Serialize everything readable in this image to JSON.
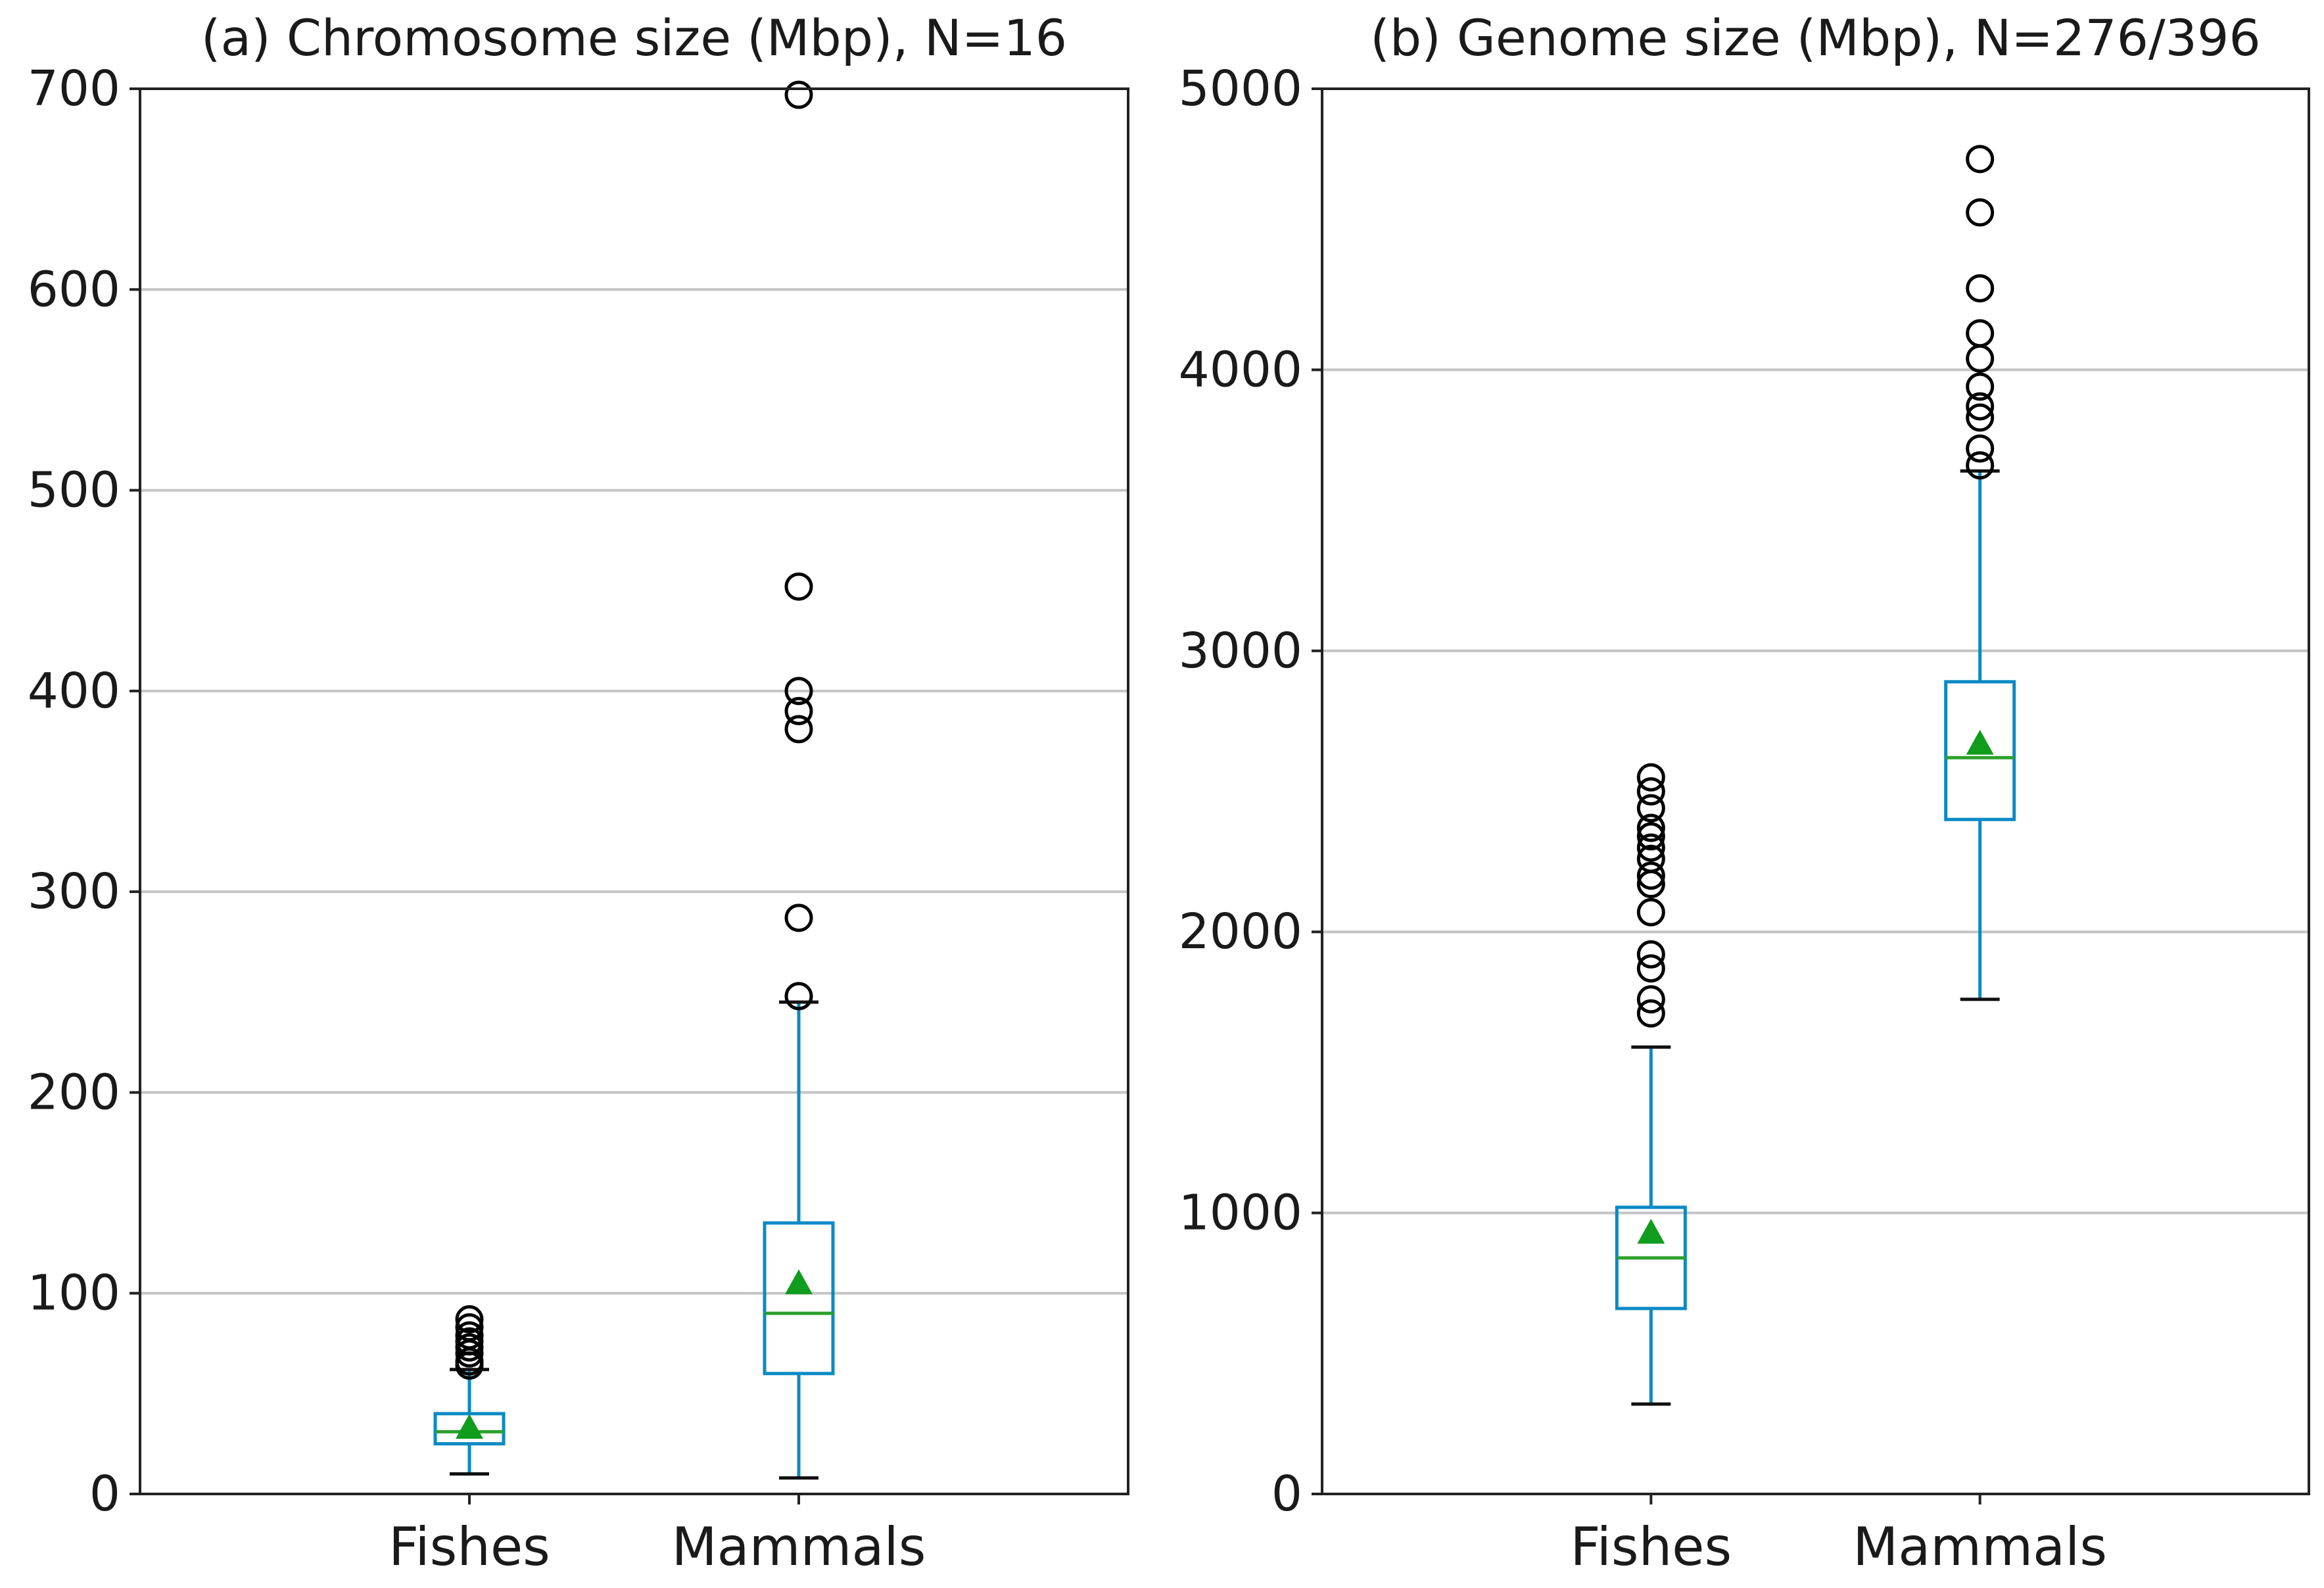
{
  "chart_data": [
    {
      "type": "box",
      "title": "(a)  Chromosome size (Mbp), N=16",
      "xlabel": "",
      "ylabel": "",
      "ylim": [
        0,
        700
      ],
      "yticks": [
        0,
        100,
        200,
        300,
        400,
        500,
        600,
        700
      ],
      "grid": "horizontal",
      "categories": [
        "Fishes",
        "Mammals"
      ],
      "boxes": [
        {
          "name": "Fishes",
          "whisker_low": 10,
          "q1": 25,
          "median": 31,
          "q3": 40,
          "whisker_high": 62,
          "mean": 33,
          "outliers": [
            64,
            66,
            70,
            73,
            76,
            79,
            83,
            87
          ]
        },
        {
          "name": "Mammals",
          "whisker_low": 8,
          "q1": 60,
          "median": 90,
          "q3": 135,
          "whisker_high": 245,
          "mean": 105,
          "outliers": [
            248,
            287,
            381,
            390,
            400,
            452,
            697
          ]
        }
      ]
    },
    {
      "type": "box",
      "title": "(b)  Genome size (Mbp), N=276/396",
      "xlabel": "",
      "ylabel": "",
      "ylim": [
        0,
        5000
      ],
      "yticks": [
        0,
        1000,
        2000,
        3000,
        4000,
        5000
      ],
      "grid": "horizontal",
      "categories": [
        "Fishes",
        "Mammals"
      ],
      "boxes": [
        {
          "name": "Fishes",
          "whisker_low": 320,
          "q1": 660,
          "median": 840,
          "q3": 1020,
          "whisker_high": 1590,
          "mean": 930,
          "outliers": [
            1710,
            1760,
            1870,
            1920,
            2070,
            2170,
            2200,
            2260,
            2300,
            2340,
            2370,
            2440,
            2500,
            2550
          ]
        },
        {
          "name": "Mammals",
          "whisker_low": 1760,
          "q1": 2400,
          "median": 2620,
          "q3": 2890,
          "whisker_high": 3640,
          "mean": 2670,
          "outliers": [
            3660,
            3720,
            3830,
            3870,
            3940,
            4040,
            4130,
            4290,
            4560,
            4750
          ]
        }
      ]
    }
  ],
  "colors": {
    "box": "#0a8ac4",
    "median": "#2ca02c",
    "mean": "#109c1c",
    "outlier": "#000000",
    "grid": "#c4c4c4",
    "axis": "#222222"
  }
}
